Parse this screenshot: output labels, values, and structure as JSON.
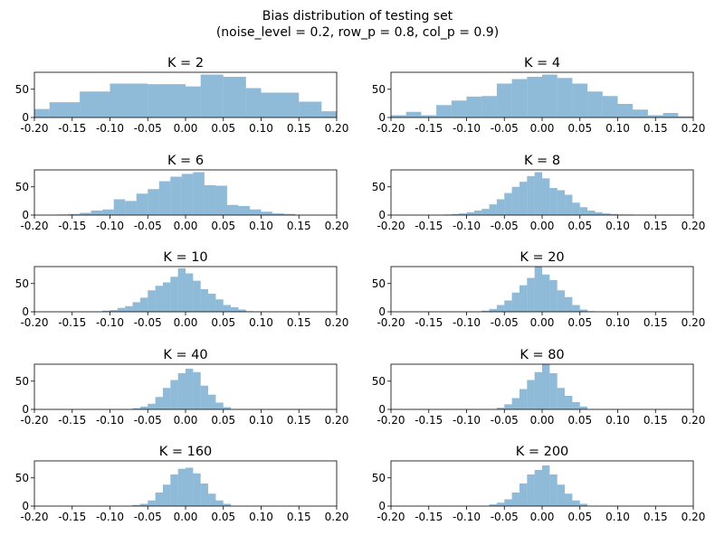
{
  "figure": {
    "title_line1": "Bias distribution of testing set",
    "title_line2": "(noise_level = 0.2, row_p = 0.8, col_p = 0.9)"
  },
  "chart_data": [
    {
      "type": "bar",
      "title": "K = 2",
      "bin_edges": [
        -0.225,
        -0.18,
        -0.14,
        -0.1,
        -0.05,
        0.0,
        0.02,
        0.05,
        0.08,
        0.1,
        0.15,
        0.18,
        0.225
      ],
      "values": [
        15,
        27,
        46,
        60,
        59,
        55,
        76,
        72,
        52,
        44,
        28,
        11
      ],
      "xlim": [
        -0.2,
        0.2
      ],
      "ylim": [
        0,
        80
      ],
      "xticks": [
        "-0.20",
        "-0.15",
        "-0.10",
        "-0.05",
        "0.00",
        "0.05",
        "0.10",
        "0.15",
        "0.20"
      ],
      "yticks": [
        "0",
        "50"
      ],
      "color": "#1f77b4"
    },
    {
      "type": "bar",
      "title": "K = 4",
      "bin_edges": [
        -0.2,
        -0.18,
        -0.16,
        -0.14,
        -0.12,
        -0.1,
        -0.08,
        -0.06,
        -0.04,
        -0.02,
        0.0,
        0.02,
        0.04,
        0.06,
        0.08,
        0.1,
        0.12,
        0.14,
        0.16,
        0.18,
        0.2
      ],
      "values": [
        4,
        10,
        4,
        22,
        30,
        37,
        38,
        60,
        68,
        72,
        76,
        70,
        60,
        46,
        38,
        24,
        14,
        4,
        8,
        2
      ],
      "xlim": [
        -0.2,
        0.2
      ],
      "ylim": [
        0,
        80
      ],
      "xticks": [
        "-0.20",
        "-0.15",
        "-0.10",
        "-0.05",
        "0.00",
        "0.05",
        "0.10",
        "0.15",
        "0.20"
      ],
      "yticks": [
        "0",
        "50"
      ],
      "color": "#1f77b4"
    },
    {
      "type": "bar",
      "title": "K = 6",
      "bin_edges": [
        -0.2,
        -0.185,
        -0.17,
        -0.155,
        -0.14,
        -0.125,
        -0.11,
        -0.095,
        -0.08,
        -0.065,
        -0.05,
        -0.035,
        -0.02,
        -0.005,
        0.01,
        0.025,
        0.04,
        0.055,
        0.07,
        0.085,
        0.1,
        0.115,
        0.13,
        0.145,
        0.16,
        0.175,
        0.19,
        0.2
      ],
      "values": [
        0,
        0,
        1,
        2,
        4,
        8,
        10,
        28,
        25,
        38,
        46,
        60,
        68,
        73,
        76,
        53,
        52,
        18,
        16,
        10,
        6,
        3,
        2,
        0,
        0,
        0,
        0
      ],
      "xlim": [
        -0.2,
        0.2
      ],
      "ylim": [
        0,
        80
      ],
      "xticks": [
        "-0.20",
        "-0.15",
        "-0.10",
        "-0.05",
        "0.00",
        "0.05",
        "0.10",
        "0.15",
        "0.20"
      ],
      "yticks": [
        "0",
        "50"
      ],
      "color": "#1f77b4"
    },
    {
      "type": "bar",
      "title": "K = 8",
      "bin_edges": [
        -0.13,
        -0.12,
        -0.11,
        -0.1,
        -0.09,
        -0.08,
        -0.07,
        -0.06,
        -0.05,
        -0.04,
        -0.03,
        -0.02,
        -0.01,
        0.0,
        0.01,
        0.02,
        0.03,
        0.04,
        0.05,
        0.06,
        0.07,
        0.08,
        0.09,
        0.1,
        0.11,
        0.12
      ],
      "values": [
        1,
        2,
        3,
        5,
        8,
        11,
        19,
        28,
        39,
        50,
        59,
        69,
        76,
        65,
        48,
        44,
        36,
        22,
        14,
        8,
        5,
        3,
        2,
        1,
        1
      ],
      "xlim": [
        -0.2,
        0.2
      ],
      "ylim": [
        0,
        80
      ],
      "xticks": [
        "-0.20",
        "-0.15",
        "-0.10",
        "-0.05",
        "0.00",
        "0.05",
        "0.10",
        "0.15",
        "0.20"
      ],
      "yticks": [
        "0",
        "50"
      ],
      "color": "#1f77b4"
    },
    {
      "type": "bar",
      "title": "K = 10",
      "bin_edges": [
        -0.11,
        -0.1,
        -0.09,
        -0.08,
        -0.07,
        -0.06,
        -0.05,
        -0.04,
        -0.03,
        -0.02,
        -0.01,
        0.0,
        0.01,
        0.02,
        0.03,
        0.04,
        0.05,
        0.06,
        0.07,
        0.08,
        0.09
      ],
      "values": [
        2,
        3,
        7,
        10,
        17,
        25,
        38,
        46,
        52,
        62,
        77,
        68,
        55,
        40,
        32,
        22,
        12,
        8,
        4,
        1
      ],
      "xlim": [
        -0.2,
        0.2
      ],
      "ylim": [
        0,
        80
      ],
      "xticks": [
        "-0.20",
        "-0.15",
        "-0.10",
        "-0.05",
        "0.00",
        "0.05",
        "0.10",
        "0.15",
        "0.20"
      ],
      "yticks": [
        "0",
        "50"
      ],
      "color": "#1f77b4"
    },
    {
      "type": "bar",
      "title": "K = 20",
      "bin_edges": [
        -0.08,
        -0.07,
        -0.06,
        -0.05,
        -0.04,
        -0.03,
        -0.02,
        -0.01,
        0.0,
        0.01,
        0.02,
        0.03,
        0.04,
        0.05,
        0.06,
        0.07
      ],
      "values": [
        2,
        5,
        12,
        20,
        34,
        47,
        60,
        84,
        66,
        56,
        38,
        26,
        12,
        4,
        1
      ],
      "xlim": [
        -0.2,
        0.2
      ],
      "ylim": [
        0,
        80
      ],
      "xticks": [
        "-0.20",
        "-0.15",
        "-0.10",
        "-0.05",
        "0.00",
        "0.05",
        "0.10",
        "0.15",
        "0.20"
      ],
      "yticks": [
        "0",
        "50"
      ],
      "color": "#1f77b4"
    },
    {
      "type": "bar",
      "title": "K = 40",
      "bin_edges": [
        -0.07,
        -0.06,
        -0.05,
        -0.04,
        -0.03,
        -0.02,
        -0.01,
        0.0,
        0.01,
        0.02,
        0.03,
        0.04,
        0.05,
        0.06
      ],
      "values": [
        2,
        5,
        10,
        22,
        38,
        52,
        64,
        72,
        66,
        42,
        26,
        12,
        4
      ],
      "xlim": [
        -0.2,
        0.2
      ],
      "ylim": [
        0,
        80
      ],
      "xticks": [
        "-0.20",
        "-0.15",
        "-0.10",
        "-0.05",
        "0.00",
        "0.05",
        "0.10",
        "0.15",
        "0.20"
      ],
      "yticks": [
        "0",
        "50"
      ],
      "color": "#1f77b4"
    },
    {
      "type": "bar",
      "title": "K = 80",
      "bin_edges": [
        -0.06,
        -0.05,
        -0.04,
        -0.03,
        -0.02,
        -0.01,
        0.0,
        0.01,
        0.02,
        0.03,
        0.04,
        0.05,
        0.06
      ],
      "values": [
        3,
        9,
        20,
        36,
        52,
        66,
        80,
        64,
        38,
        24,
        13,
        5
      ],
      "xlim": [
        -0.2,
        0.2
      ],
      "ylim": [
        0,
        80
      ],
      "xticks": [
        "-0.20",
        "-0.15",
        "-0.10",
        "-0.05",
        "0.00",
        "0.05",
        "0.10",
        "0.15",
        "0.20"
      ],
      "yticks": [
        "0",
        "50"
      ],
      "color": "#1f77b4"
    },
    {
      "type": "bar",
      "title": "K = 160",
      "bin_edges": [
        -0.07,
        -0.06,
        -0.05,
        -0.04,
        -0.03,
        -0.02,
        -0.01,
        0.0,
        0.01,
        0.02,
        0.03,
        0.04,
        0.05,
        0.06
      ],
      "values": [
        2,
        4,
        10,
        24,
        38,
        56,
        66,
        68,
        58,
        40,
        22,
        10,
        4
      ],
      "xlim": [
        -0.2,
        0.2
      ],
      "ylim": [
        0,
        80
      ],
      "xticks": [
        "-0.20",
        "-0.15",
        "-0.10",
        "-0.05",
        "0.00",
        "0.05",
        "0.10",
        "0.15",
        "0.20"
      ],
      "yticks": [
        "0",
        "50"
      ],
      "color": "#1f77b4"
    },
    {
      "type": "bar",
      "title": "K = 200",
      "bin_edges": [
        -0.07,
        -0.06,
        -0.05,
        -0.04,
        -0.03,
        -0.02,
        -0.01,
        0.0,
        0.01,
        0.02,
        0.03,
        0.04,
        0.05,
        0.06
      ],
      "values": [
        3,
        6,
        12,
        24,
        40,
        56,
        64,
        72,
        56,
        38,
        22,
        10,
        4
      ],
      "xlim": [
        -0.2,
        0.2
      ],
      "ylim": [
        0,
        80
      ],
      "xticks": [
        "-0.20",
        "-0.15",
        "-0.10",
        "-0.05",
        "0.00",
        "0.05",
        "0.10",
        "0.15",
        "0.20"
      ],
      "yticks": [
        "0",
        "50"
      ],
      "color": "#1f77b4"
    }
  ]
}
